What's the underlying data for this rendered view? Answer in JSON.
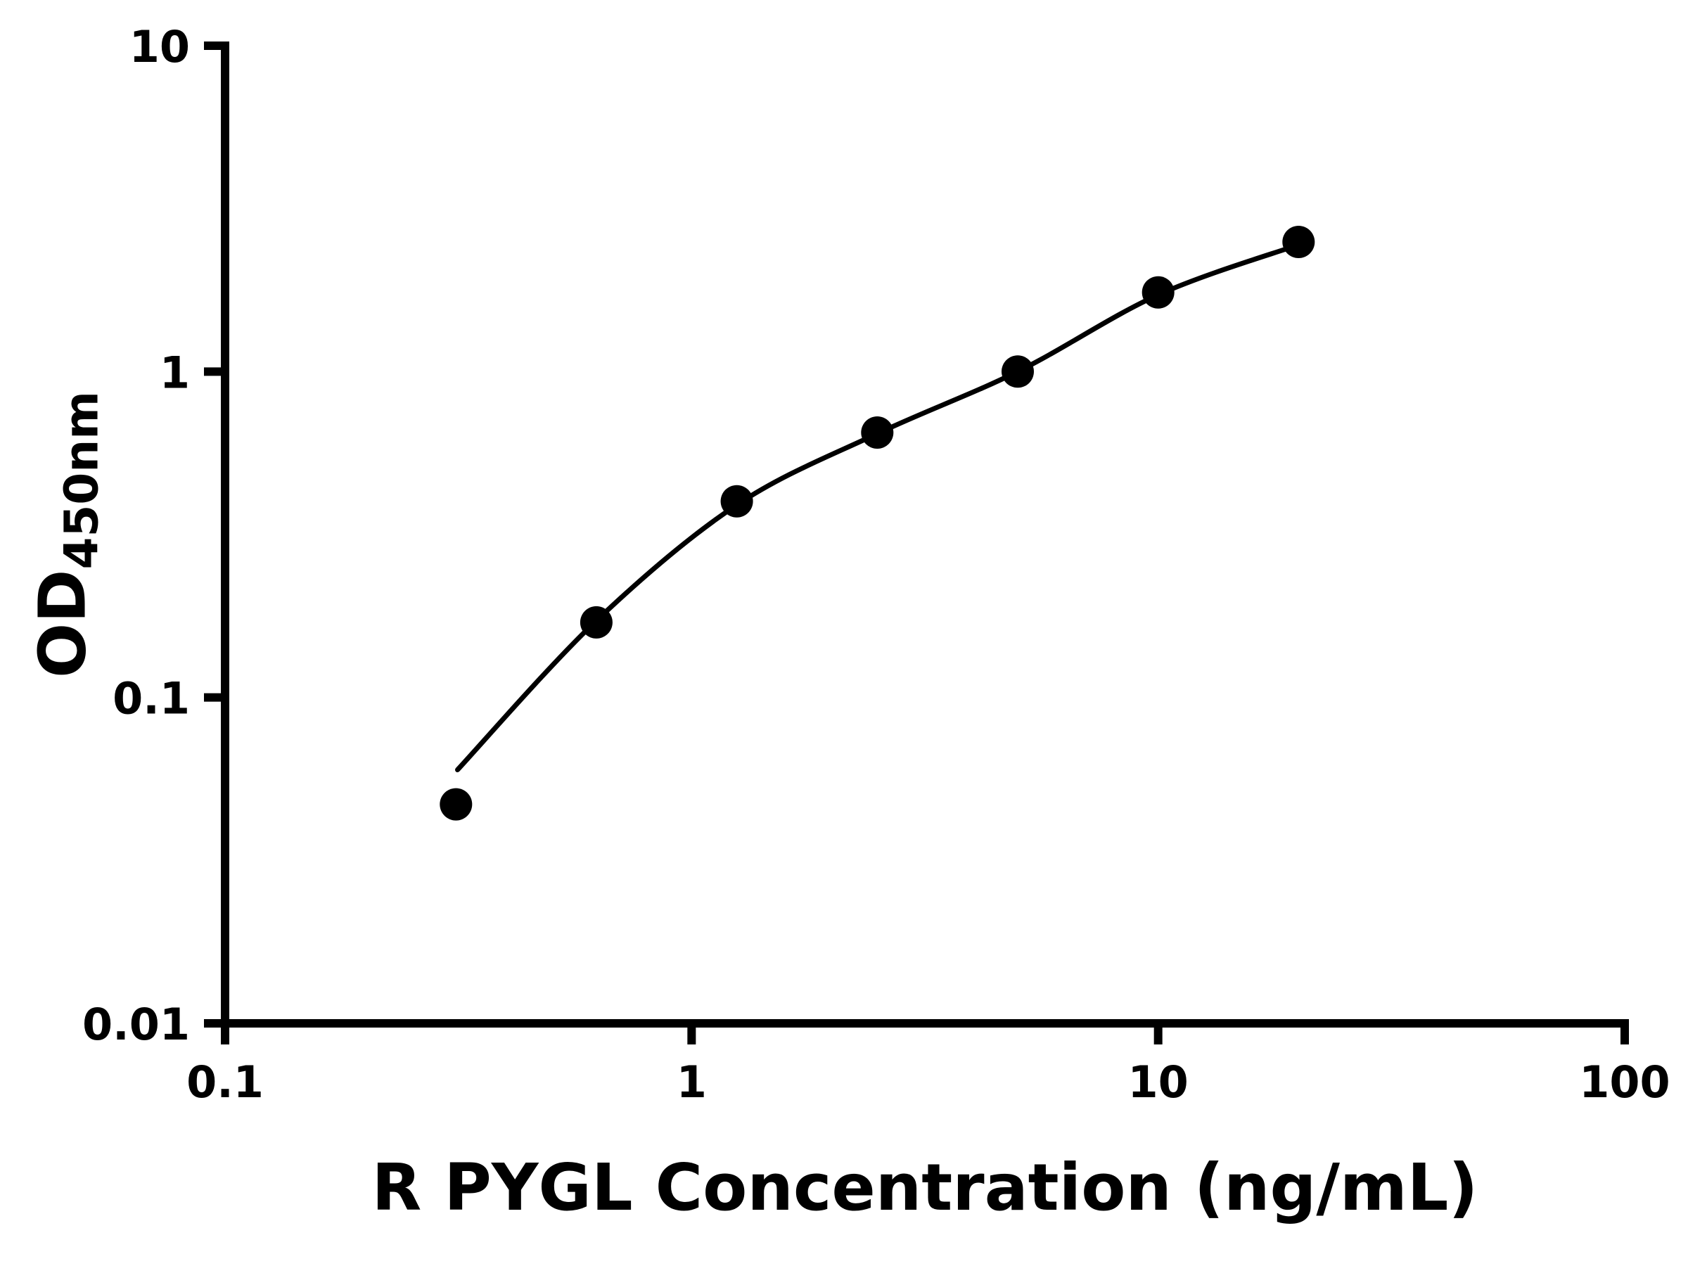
{
  "page": {
    "background": "#ffffff",
    "foreground": "#000000"
  },
  "chart_data": {
    "type": "scatter",
    "xlabel": "R PYGL Concentration (ng/mL)",
    "ylabel_main": "OD",
    "ylabel_sub": "450nm",
    "x_scale": "log",
    "y_scale": "log",
    "xlim": [
      0.1,
      100
    ],
    "ylim": [
      0.01,
      10
    ],
    "grid": false,
    "legend": "none",
    "x_ticks": [
      {
        "value": 0.1,
        "label": "0.1"
      },
      {
        "value": 1,
        "label": "1"
      },
      {
        "value": 10,
        "label": "10"
      },
      {
        "value": 100,
        "label": "100"
      }
    ],
    "y_ticks": [
      {
        "value": 0.01,
        "label": "0.01"
      },
      {
        "value": 0.1,
        "label": "0.1"
      },
      {
        "value": 1,
        "label": "1"
      },
      {
        "value": 10,
        "label": "10"
      }
    ],
    "series": [
      {
        "name": "standard-curve-points",
        "marker": "circle",
        "color": "#000000",
        "points": [
          {
            "x": 0.3125,
            "y": 0.047
          },
          {
            "x": 0.625,
            "y": 0.17
          },
          {
            "x": 1.25,
            "y": 0.4
          },
          {
            "x": 2.5,
            "y": 0.65
          },
          {
            "x": 5,
            "y": 1.0
          },
          {
            "x": 10,
            "y": 1.75
          },
          {
            "x": 20,
            "y": 2.5
          }
        ]
      }
    ],
    "fit_curve": {
      "name": "fitted-standard-curve",
      "color": "#000000",
      "points": [
        {
          "x": 0.315,
          "y": 0.06
        },
        {
          "x": 0.625,
          "y": 0.172
        },
        {
          "x": 1.25,
          "y": 0.39
        },
        {
          "x": 2.5,
          "y": 0.645
        },
        {
          "x": 5,
          "y": 1.0
        },
        {
          "x": 10,
          "y": 1.72
        },
        {
          "x": 20,
          "y": 2.45
        }
      ]
    }
  }
}
